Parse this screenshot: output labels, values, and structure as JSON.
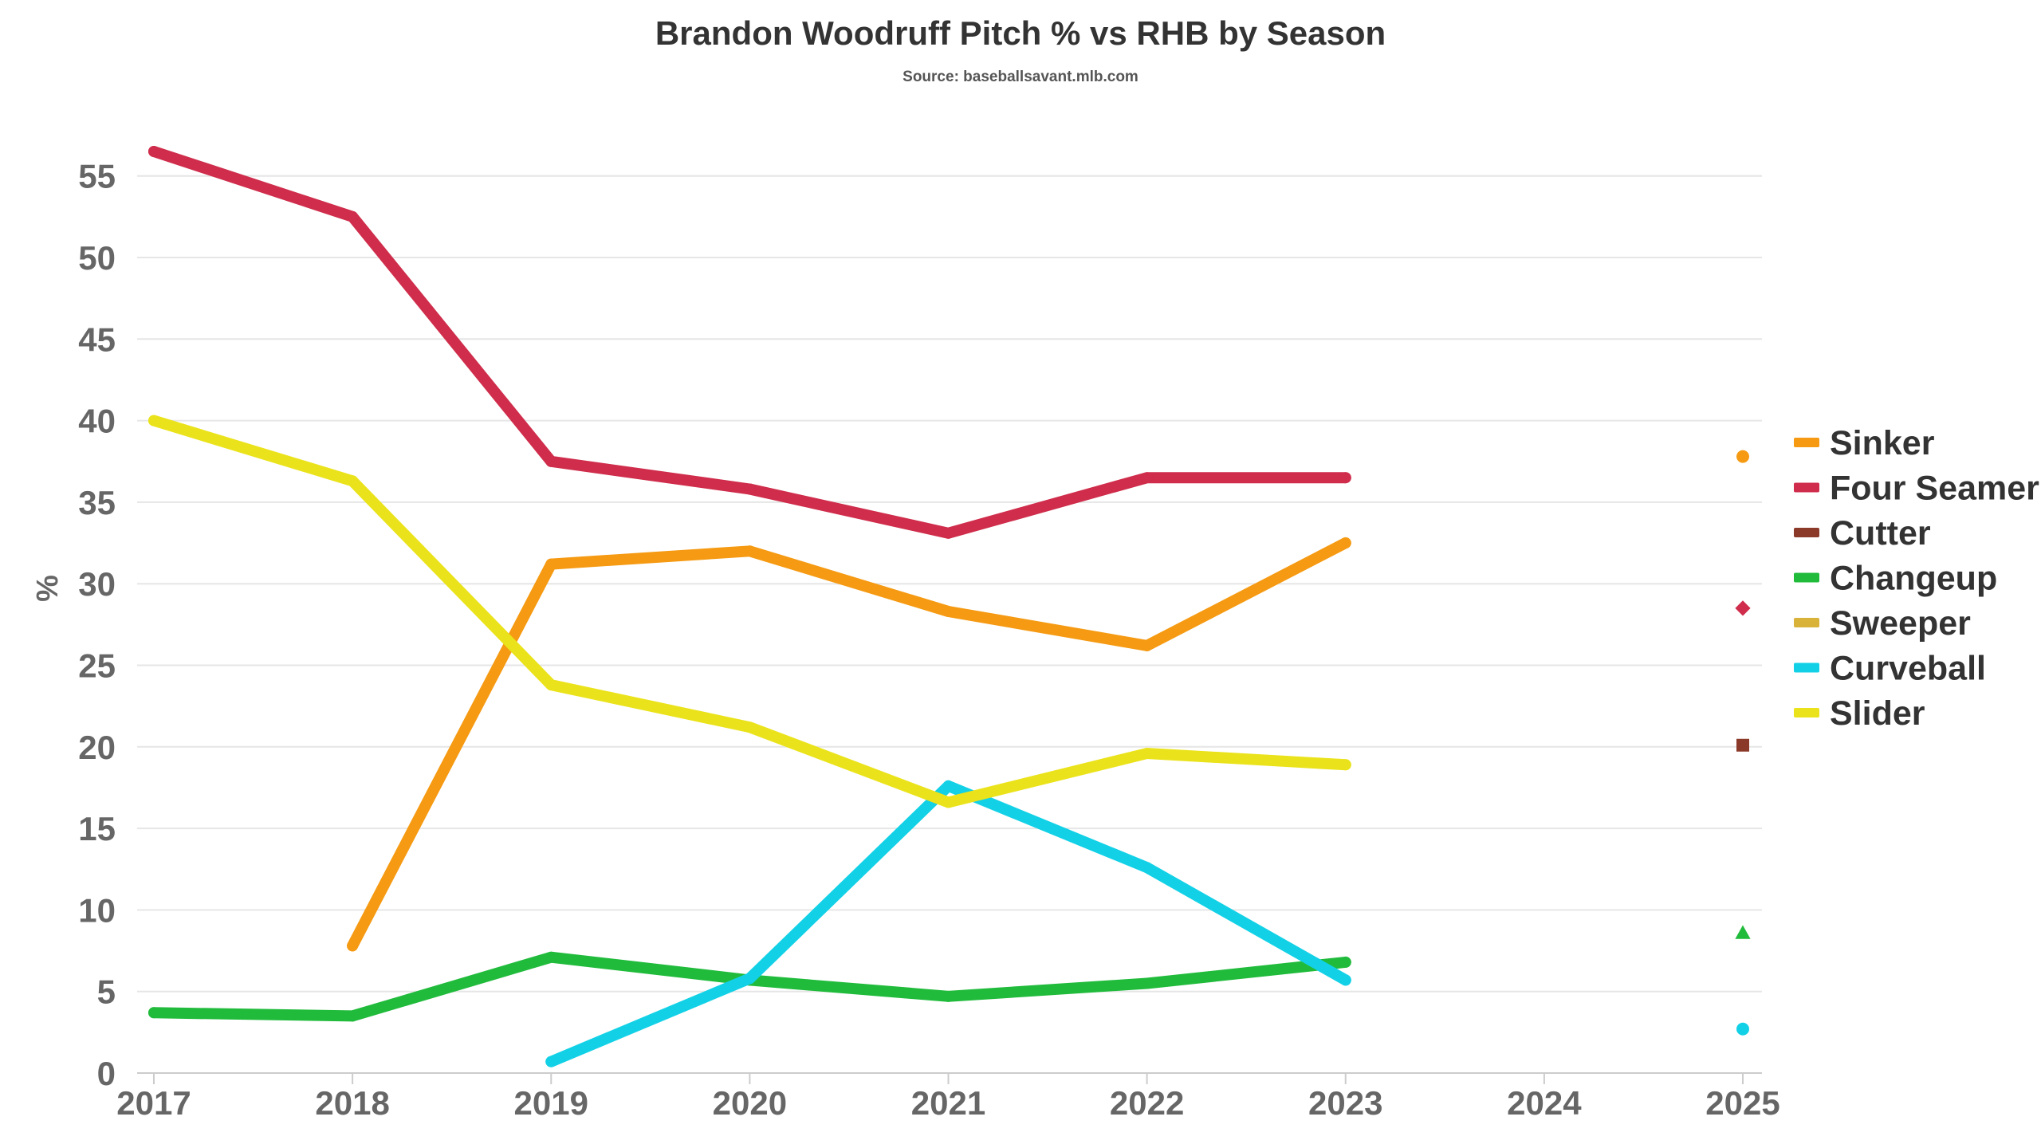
{
  "chart_data": {
    "type": "line",
    "title": "Brandon Woodruff Pitch % vs RHB by Season",
    "subtitle": "Source: baseballsavant.mlb.com",
    "xlabel": "",
    "ylabel": "%",
    "x": [
      2017,
      2018,
      2019,
      2020,
      2021,
      2022,
      2023,
      2024,
      2025
    ],
    "xlim": [
      2017,
      2025
    ],
    "ylim": [
      0,
      58
    ],
    "yticks": [
      0,
      5,
      10,
      15,
      20,
      25,
      30,
      35,
      40,
      45,
      50,
      55
    ],
    "grid": true,
    "legend_position": "right",
    "series": [
      {
        "name": "Sinker",
        "color": "#f59a12",
        "marker": "circle",
        "points": [
          [
            2018,
            7.8
          ],
          [
            2019,
            31.2
          ],
          [
            2020,
            32.0
          ],
          [
            2021,
            28.3
          ],
          [
            2022,
            26.2
          ],
          [
            2023,
            32.5
          ],
          [
            2025,
            37.8
          ]
        ]
      },
      {
        "name": "Four Seamer",
        "color": "#cf2d4b",
        "marker": "diamond",
        "points": [
          [
            2017,
            56.5
          ],
          [
            2018,
            52.5
          ],
          [
            2019,
            37.5
          ],
          [
            2020,
            35.8
          ],
          [
            2021,
            33.1
          ],
          [
            2022,
            36.5
          ],
          [
            2023,
            36.5
          ],
          [
            2025,
            28.5
          ]
        ]
      },
      {
        "name": "Cutter",
        "color": "#8b3a2a",
        "marker": "square",
        "points": [
          [
            2025,
            20.1
          ]
        ]
      },
      {
        "name": "Changeup",
        "color": "#21bb3c",
        "marker": "triangle",
        "points": [
          [
            2017,
            3.7
          ],
          [
            2018,
            3.5
          ],
          [
            2019,
            7.1
          ],
          [
            2020,
            5.7
          ],
          [
            2021,
            4.7
          ],
          [
            2022,
            5.5
          ],
          [
            2023,
            6.8
          ],
          [
            2025,
            8.6
          ]
        ]
      },
      {
        "name": "Sweeper",
        "color": "#d9b23a",
        "marker": "triangle-down",
        "points": []
      },
      {
        "name": "Curveball",
        "color": "#12d1e6",
        "marker": "circle",
        "points": [
          [
            2019,
            0.7
          ],
          [
            2020,
            5.8
          ],
          [
            2021,
            17.6
          ],
          [
            2022,
            12.6
          ],
          [
            2023,
            5.7
          ],
          [
            2025,
            2.7
          ]
        ]
      },
      {
        "name": "Slider",
        "color": "#eae31b",
        "marker": "circle",
        "points": [
          [
            2017,
            40.0
          ],
          [
            2018,
            36.3
          ],
          [
            2019,
            23.8
          ],
          [
            2020,
            21.2
          ],
          [
            2021,
            16.6
          ],
          [
            2022,
            19.6
          ],
          [
            2023,
            18.9
          ]
        ]
      }
    ]
  }
}
